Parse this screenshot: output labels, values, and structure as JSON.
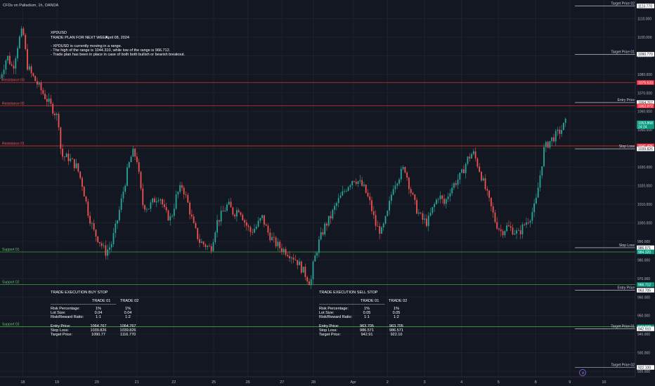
{
  "header": {
    "title": "CFDs on Palladium, 1h, OANDA",
    "currency": "USD"
  },
  "colors": {
    "background": "#131722",
    "bull": "#26a69a",
    "bear": "#ef5350",
    "resistance_line": "#d32f2f",
    "support_line": "#43a047",
    "price_label_green": "#089981",
    "price_label_red": "#f23645"
  },
  "plan": {
    "symbol": "XPDUSD",
    "heading": "TRADE PLAN FOR NEXT WEEK:",
    "date": "April 08, 2024",
    "bullets": [
      "- XPDUSD is currently moving in a range.",
      "- The high of the range is 1044.310, while low of the range is 966.712.",
      "- Trade plan has been in place in case of both both bullish or bearish breakout."
    ]
  },
  "buy_stop": {
    "title": "TRADE EXECUTION BUY STOP",
    "col1": "TRADE 01",
    "col2": "TRADE 02",
    "divider": "--------------------------------------------------------",
    "rows_a": [
      {
        "label": "Risk Percentage:",
        "v1": "1%",
        "v2": "1%"
      },
      {
        "label": "Lot Size:",
        "v1": "0.04",
        "v2": "0.04"
      },
      {
        "label": "Risk/Reward Ratio:",
        "v1": "1:1",
        "v2": "1:2"
      }
    ],
    "rows_b": [
      {
        "label": "Entry Price:",
        "v1": "1064.767",
        "v2": "1064.767"
      },
      {
        "label": "Stop Loss:",
        "v1": "1039.826",
        "v2": "1039.826"
      },
      {
        "label": "Target Price:",
        "v1": "1090.77",
        "v2": "1116.770"
      }
    ]
  },
  "sell_stop": {
    "title": "TRADE EXECUTION SELL STOP",
    "col1": "TRADE 01",
    "col2": "TRADE 02",
    "divider": "--------------------------------------------------------",
    "rows_a": [
      {
        "label": "Risk Percentage:",
        "v1": "1%",
        "v2": "1%"
      },
      {
        "label": "Lot Size:",
        "v1": "0.05",
        "v2": "0.05"
      },
      {
        "label": "Risk/Reward Ratio:",
        "v1": "1:1",
        "v2": "1:2"
      }
    ],
    "rows_b": [
      {
        "label": "Entry Price:",
        "v1": "963.705",
        "v2": "963.705"
      },
      {
        "label": "Stop Loss:",
        "v1": "986.571",
        "v2": "986.571"
      },
      {
        "label": "Target Price:",
        "v1": "942.91",
        "v2": "922.10"
      }
    ]
  },
  "chart_data": {
    "type": "candlestick",
    "title": "CFDs on Palladium, 1h, OANDA",
    "ylim": [
      917,
      1120
    ],
    "y_ticks": [
      920,
      930,
      940,
      950,
      960,
      970,
      980,
      990,
      1000,
      1010,
      1020,
      1030,
      1040,
      1050,
      1060,
      1070,
      1080,
      1090,
      1100,
      1110
    ],
    "x_ticks": [
      "18",
      "19",
      "20",
      "21",
      "22",
      "25",
      "26",
      "27",
      "28",
      "Apr",
      "2",
      "3",
      "4",
      "5",
      "8",
      "9",
      "10"
    ],
    "x_tick_positions": [
      0.0,
      1.2,
      2.6,
      4.0,
      5.3,
      6.7,
      7.9,
      9.1,
      10.2,
      11.6,
      12.8,
      14.1,
      15.4,
      16.7,
      18.0,
      19.2,
      20.4
    ],
    "x_range": [
      -0.8,
      21.5
    ],
    "resistance_levels": [
      {
        "name": "Resistance 03",
        "price": 1075.5
      },
      {
        "name": "Resistance 02",
        "price": 1063.0
      },
      {
        "name": "Resistance 01",
        "price": 1041.4
      }
    ],
    "support_levels": [
      {
        "name": "Support 01",
        "price": 984.3
      },
      {
        "name": "Support 02",
        "price": 966.7
      },
      {
        "name": "Support 03",
        "price": 944.0
      }
    ],
    "trade_marker_lines": [
      {
        "label": "Target Price 02",
        "price": 1116.77
      },
      {
        "label": "Target Price 01",
        "price": 1090.77
      },
      {
        "label": "Entry Price",
        "price": 1064.767
      },
      {
        "label": "Stop Loss",
        "price": 1039.826
      },
      {
        "label": "Stop Loss",
        "price": 986.571
      },
      {
        "label": "Entry Price",
        "price": 963.705
      },
      {
        "label": "Target Price 01",
        "price": 942.91
      },
      {
        "label": "Target Price 02",
        "price": 922.1
      }
    ],
    "axis_labels": [
      {
        "text": "1116.770",
        "price": 1116.77,
        "style": "white"
      },
      {
        "text": "1090.770",
        "price": 1090.77,
        "style": "white"
      },
      {
        "text": "1075.533",
        "price": 1075.533,
        "style": "red"
      },
      {
        "text": "1064.767",
        "price": 1064.767,
        "style": "white"
      },
      {
        "text": "1062.972",
        "price": 1062.972,
        "style": "red"
      },
      {
        "text": "1053.868",
        "price": 1053.868,
        "style": "green",
        "sub": "24:24"
      },
      {
        "text": "1041.426",
        "price": 1041.426,
        "style": "red"
      },
      {
        "text": "1039.826",
        "price": 1039.826,
        "style": "white"
      },
      {
        "text": "986.571",
        "price": 986.571,
        "style": "white"
      },
      {
        "text": "984.320",
        "price": 984.32,
        "style": "green"
      },
      {
        "text": "966.712",
        "price": 966.712,
        "style": "green"
      },
      {
        "text": "963.705",
        "price": 963.705,
        "style": "white"
      },
      {
        "text": "943.938",
        "price": 943.938,
        "style": "green"
      },
      {
        "text": "942.910",
        "price": 942.91,
        "style": "white"
      },
      {
        "text": "922.100",
        "price": 922.1,
        "style": "white"
      }
    ],
    "current_price": 1053.868,
    "close_path": [
      [
        -0.8,
        1078
      ],
      [
        -0.55,
        1090
      ],
      [
        -0.35,
        1083
      ],
      [
        -0.15,
        1098
      ],
      [
        0.0,
        1104
      ],
      [
        0.15,
        1085
      ],
      [
        0.3,
        1080
      ],
      [
        0.5,
        1075
      ],
      [
        0.7,
        1070
      ],
      [
        0.9,
        1065
      ],
      [
        1.1,
        1060
      ],
      [
        1.25,
        1056
      ],
      [
        1.35,
        1036
      ],
      [
        1.6,
        1035
      ],
      [
        1.9,
        1030
      ],
      [
        2.1,
        1020
      ],
      [
        2.3,
        1005
      ],
      [
        2.5,
        995
      ],
      [
        2.7,
        990
      ],
      [
        2.9,
        984
      ],
      [
        3.1,
        988
      ],
      [
        3.3,
        1000
      ],
      [
        3.5,
        1015
      ],
      [
        3.7,
        1030
      ],
      [
        3.85,
        1038
      ],
      [
        4.0,
        1035
      ],
      [
        4.2,
        1010
      ],
      [
        4.4,
        1008
      ],
      [
        4.6,
        1012
      ],
      [
        4.8,
        1015
      ],
      [
        5.0,
        1005
      ],
      [
        5.2,
        1002
      ],
      [
        5.4,
        1015
      ],
      [
        5.6,
        1020
      ],
      [
        5.8,
        1010
      ],
      [
        6.0,
        998
      ],
      [
        6.2,
        990
      ],
      [
        6.4,
        988
      ],
      [
        6.6,
        986
      ],
      [
        6.8,
        1000
      ],
      [
        7.0,
        1005
      ],
      [
        7.2,
        1010
      ],
      [
        7.4,
        1005
      ],
      [
        7.6,
        1008
      ],
      [
        7.8,
        1000
      ],
      [
        8.0,
        995
      ],
      [
        8.2,
        998
      ],
      [
        8.4,
        1003
      ],
      [
        8.6,
        995
      ],
      [
        8.8,
        990
      ],
      [
        9.0,
        987
      ],
      [
        9.2,
        985
      ],
      [
        9.4,
        983
      ],
      [
        9.6,
        980
      ],
      [
        9.8,
        975
      ],
      [
        10.0,
        970
      ],
      [
        10.1,
        967
      ],
      [
        10.2,
        978
      ],
      [
        10.4,
        990
      ],
      [
        10.6,
        998
      ],
      [
        10.8,
        1003
      ],
      [
        11.0,
        1010
      ],
      [
        11.2,
        1015
      ],
      [
        11.4,
        1020
      ],
      [
        11.6,
        1024
      ],
      [
        11.8,
        1022
      ],
      [
        12.0,
        1018
      ],
      [
        12.2,
        1010
      ],
      [
        12.4,
        998
      ],
      [
        12.6,
        995
      ],
      [
        12.8,
        1005
      ],
      [
        13.0,
        1020
      ],
      [
        13.2,
        1025
      ],
      [
        13.4,
        1030
      ],
      [
        13.6,
        1018
      ],
      [
        13.8,
        1008
      ],
      [
        14.0,
        1002
      ],
      [
        14.2,
        1000
      ],
      [
        14.4,
        1008
      ],
      [
        14.6,
        1015
      ],
      [
        14.8,
        1010
      ],
      [
        15.0,
        1018
      ],
      [
        15.2,
        1022
      ],
      [
        15.4,
        1026
      ],
      [
        15.6,
        1034
      ],
      [
        15.8,
        1038
      ],
      [
        16.0,
        1030
      ],
      [
        16.2,
        1020
      ],
      [
        16.4,
        1010
      ],
      [
        16.6,
        1000
      ],
      [
        16.8,
        995
      ],
      [
        17.0,
        998
      ],
      [
        17.2,
        996
      ],
      [
        17.4,
        994
      ],
      [
        17.6,
        999
      ],
      [
        17.8,
        1003
      ],
      [
        18.0,
        1010
      ],
      [
        18.15,
        1025
      ],
      [
        18.3,
        1040
      ],
      [
        18.5,
        1044
      ],
      [
        18.7,
        1047
      ],
      [
        18.9,
        1050
      ],
      [
        19.05,
        1053.868
      ]
    ]
  }
}
